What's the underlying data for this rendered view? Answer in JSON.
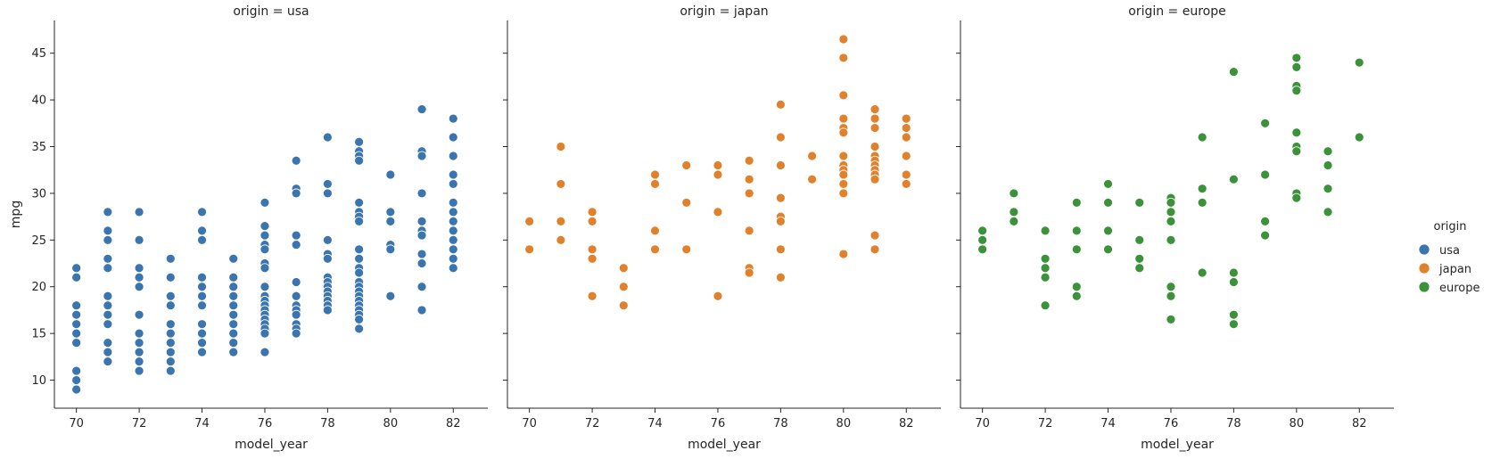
{
  "chart_data": {
    "type": "scatter",
    "facet_by": "origin",
    "xlabel": "model_year",
    "ylabel": "mpg",
    "xlim": [
      69.3,
      83.1
    ],
    "ylim": [
      7.0,
      48.5
    ],
    "x_ticks": [
      70,
      72,
      74,
      76,
      78,
      80,
      82
    ],
    "y_ticks": [
      10,
      15,
      20,
      25,
      30,
      35,
      40,
      45
    ],
    "legend": {
      "title": "origin",
      "position": "right"
    },
    "panels": [
      {
        "title": "origin = usa",
        "series": "usa",
        "color": "#3a75af",
        "points": [
          [
            70,
            22
          ],
          [
            70,
            21
          ],
          [
            70,
            18
          ],
          [
            70,
            17
          ],
          [
            70,
            16
          ],
          [
            70,
            15
          ],
          [
            70,
            14
          ],
          [
            70,
            11
          ],
          [
            70,
            10
          ],
          [
            70,
            9
          ],
          [
            71,
            28
          ],
          [
            71,
            26
          ],
          [
            71,
            25
          ],
          [
            71,
            23
          ],
          [
            71,
            22
          ],
          [
            71,
            19
          ],
          [
            71,
            18
          ],
          [
            71,
            17
          ],
          [
            71,
            16
          ],
          [
            71,
            14
          ],
          [
            71,
            13
          ],
          [
            71,
            12
          ],
          [
            72,
            28
          ],
          [
            72,
            25
          ],
          [
            72,
            22
          ],
          [
            72,
            21
          ],
          [
            72,
            20
          ],
          [
            72,
            17
          ],
          [
            72,
            15
          ],
          [
            72,
            14
          ],
          [
            72,
            13
          ],
          [
            72,
            12
          ],
          [
            72,
            11
          ],
          [
            73,
            23
          ],
          [
            73,
            21
          ],
          [
            73,
            19
          ],
          [
            73,
            18
          ],
          [
            73,
            16
          ],
          [
            73,
            15
          ],
          [
            73,
            14
          ],
          [
            73,
            13
          ],
          [
            73,
            12
          ],
          [
            73,
            11
          ],
          [
            74,
            28
          ],
          [
            74,
            26
          ],
          [
            74,
            25
          ],
          [
            74,
            21
          ],
          [
            74,
            20
          ],
          [
            74,
            19
          ],
          [
            74,
            18
          ],
          [
            74,
            16
          ],
          [
            74,
            15
          ],
          [
            74,
            14
          ],
          [
            74,
            13
          ],
          [
            75,
            23
          ],
          [
            75,
            21
          ],
          [
            75,
            20
          ],
          [
            75,
            19
          ],
          [
            75,
            18
          ],
          [
            75,
            17
          ],
          [
            75,
            16
          ],
          [
            75,
            15
          ],
          [
            75,
            14
          ],
          [
            75,
            13
          ],
          [
            76,
            29
          ],
          [
            76,
            26.5
          ],
          [
            76,
            25.5
          ],
          [
            76,
            24.5
          ],
          [
            76,
            24
          ],
          [
            76,
            22.5
          ],
          [
            76,
            22
          ],
          [
            76,
            20
          ],
          [
            76,
            19
          ],
          [
            76,
            18.5
          ],
          [
            76,
            18
          ],
          [
            76,
            17.5
          ],
          [
            76,
            17
          ],
          [
            76,
            16.5
          ],
          [
            76,
            16
          ],
          [
            76,
            15.5
          ],
          [
            76,
            15
          ],
          [
            76,
            13
          ],
          [
            77,
            33.5
          ],
          [
            77,
            30.5
          ],
          [
            77,
            30
          ],
          [
            77,
            25.5
          ],
          [
            77,
            24.5
          ],
          [
            77,
            20.5
          ],
          [
            77,
            19
          ],
          [
            77,
            18
          ],
          [
            77,
            17.5
          ],
          [
            77,
            17
          ],
          [
            77,
            16
          ],
          [
            77,
            15.5
          ],
          [
            77,
            15
          ],
          [
            78,
            36
          ],
          [
            78,
            31
          ],
          [
            78,
            30
          ],
          [
            78,
            25
          ],
          [
            78,
            23.5
          ],
          [
            78,
            23
          ],
          [
            78,
            21
          ],
          [
            78,
            20.5
          ],
          [
            78,
            20
          ],
          [
            78,
            19.5
          ],
          [
            78,
            19
          ],
          [
            78,
            18.5
          ],
          [
            78,
            18
          ],
          [
            78,
            17.5
          ],
          [
            79,
            35.5
          ],
          [
            79,
            34.5
          ],
          [
            79,
            34
          ],
          [
            79,
            33.5
          ],
          [
            79,
            29
          ],
          [
            79,
            28
          ],
          [
            79,
            27.5
          ],
          [
            79,
            27
          ],
          [
            79,
            24
          ],
          [
            79,
            23
          ],
          [
            79,
            22
          ],
          [
            79,
            21.5
          ],
          [
            79,
            20.5
          ],
          [
            79,
            20
          ],
          [
            79,
            19.5
          ],
          [
            79,
            19
          ],
          [
            79,
            18.5
          ],
          [
            79,
            18
          ],
          [
            79,
            17.5
          ],
          [
            79,
            17
          ],
          [
            79,
            16.5
          ],
          [
            79,
            15.5
          ],
          [
            80,
            32
          ],
          [
            80,
            28
          ],
          [
            80,
            27
          ],
          [
            80,
            24.5
          ],
          [
            80,
            24
          ],
          [
            80,
            19
          ],
          [
            81,
            39
          ],
          [
            81,
            34.5
          ],
          [
            81,
            34
          ],
          [
            81,
            30
          ],
          [
            81,
            27
          ],
          [
            81,
            26
          ],
          [
            81,
            25.5
          ],
          [
            81,
            23.5
          ],
          [
            81,
            22.5
          ],
          [
            81,
            20
          ],
          [
            81,
            17.5
          ],
          [
            82,
            38
          ],
          [
            82,
            36
          ],
          [
            82,
            34
          ],
          [
            82,
            32
          ],
          [
            82,
            31
          ],
          [
            82,
            29
          ],
          [
            82,
            28
          ],
          [
            82,
            27
          ],
          [
            82,
            26
          ],
          [
            82,
            25
          ],
          [
            82,
            24
          ],
          [
            82,
            23
          ],
          [
            82,
            22
          ]
        ]
      },
      {
        "title": "origin = japan",
        "series": "japan",
        "color": "#e1812c",
        "points": [
          [
            70,
            27
          ],
          [
            70,
            24
          ],
          [
            71,
            35
          ],
          [
            71,
            31
          ],
          [
            71,
            27
          ],
          [
            71,
            25
          ],
          [
            72,
            28
          ],
          [
            72,
            27
          ],
          [
            72,
            24
          ],
          [
            72,
            23
          ],
          [
            72,
            19
          ],
          [
            73,
            22
          ],
          [
            73,
            20
          ],
          [
            73,
            18
          ],
          [
            74,
            32
          ],
          [
            74,
            31
          ],
          [
            74,
            26
          ],
          [
            74,
            24
          ],
          [
            75,
            33
          ],
          [
            75,
            29
          ],
          [
            75,
            24
          ],
          [
            76,
            33
          ],
          [
            76,
            32
          ],
          [
            76,
            28
          ],
          [
            76,
            19
          ],
          [
            77,
            33.5
          ],
          [
            77,
            31.5
          ],
          [
            77,
            30
          ],
          [
            77,
            26
          ],
          [
            77,
            22
          ],
          [
            77,
            21.5
          ],
          [
            78,
            39.5
          ],
          [
            78,
            36
          ],
          [
            78,
            33
          ],
          [
            78,
            29.5
          ],
          [
            78,
            27.5
          ],
          [
            78,
            27
          ],
          [
            78,
            24
          ],
          [
            78,
            21
          ],
          [
            79,
            34
          ],
          [
            79,
            31.5
          ],
          [
            80,
            46.5
          ],
          [
            80,
            44.5
          ],
          [
            80,
            40.5
          ],
          [
            80,
            38
          ],
          [
            80,
            37
          ],
          [
            80,
            36.5
          ],
          [
            80,
            34
          ],
          [
            80,
            33
          ],
          [
            80,
            32.5
          ],
          [
            80,
            32
          ],
          [
            80,
            31
          ],
          [
            80,
            30
          ],
          [
            80,
            23.5
          ],
          [
            81,
            39
          ],
          [
            81,
            38
          ],
          [
            81,
            37
          ],
          [
            81,
            35
          ],
          [
            81,
            34
          ],
          [
            81,
            33.5
          ],
          [
            81,
            33
          ],
          [
            81,
            32.5
          ],
          [
            81,
            32
          ],
          [
            81,
            31.5
          ],
          [
            81,
            25.5
          ],
          [
            81,
            24
          ],
          [
            82,
            38
          ],
          [
            82,
            37
          ],
          [
            82,
            36
          ],
          [
            82,
            34
          ],
          [
            82,
            32
          ],
          [
            82,
            31
          ]
        ]
      },
      {
        "title": "origin = europe",
        "series": "europe",
        "color": "#3b923a",
        "points": [
          [
            70,
            26
          ],
          [
            70,
            25
          ],
          [
            70,
            24
          ],
          [
            71,
            30
          ],
          [
            71,
            28
          ],
          [
            71,
            27
          ],
          [
            72,
            26
          ],
          [
            72,
            23
          ],
          [
            72,
            22
          ],
          [
            72,
            21
          ],
          [
            72,
            18
          ],
          [
            73,
            29
          ],
          [
            73,
            26
          ],
          [
            73,
            24
          ],
          [
            73,
            20
          ],
          [
            73,
            19
          ],
          [
            74,
            31
          ],
          [
            74,
            29
          ],
          [
            74,
            26
          ],
          [
            74,
            24
          ],
          [
            75,
            29
          ],
          [
            75,
            25
          ],
          [
            75,
            23
          ],
          [
            75,
            22
          ],
          [
            76,
            29.5
          ],
          [
            76,
            29
          ],
          [
            76,
            28
          ],
          [
            76,
            27
          ],
          [
            76,
            25
          ],
          [
            76,
            20
          ],
          [
            76,
            19
          ],
          [
            76,
            16.5
          ],
          [
            77,
            36
          ],
          [
            77,
            30.5
          ],
          [
            77,
            29
          ],
          [
            77,
            21.5
          ],
          [
            78,
            43
          ],
          [
            78,
            31.5
          ],
          [
            78,
            21.5
          ],
          [
            78,
            20.5
          ],
          [
            78,
            17
          ],
          [
            78,
            16
          ],
          [
            79,
            37.5
          ],
          [
            79,
            32
          ],
          [
            79,
            27
          ],
          [
            79,
            25.5
          ],
          [
            80,
            44.5
          ],
          [
            80,
            43.5
          ],
          [
            80,
            41.5
          ],
          [
            80,
            41
          ],
          [
            80,
            36.5
          ],
          [
            80,
            35
          ],
          [
            80,
            34.5
          ],
          [
            80,
            30
          ],
          [
            80,
            29.5
          ],
          [
            81,
            34.5
          ],
          [
            81,
            33
          ],
          [
            81,
            30.5
          ],
          [
            81,
            28
          ],
          [
            82,
            44
          ],
          [
            82,
            36
          ]
        ]
      }
    ]
  }
}
